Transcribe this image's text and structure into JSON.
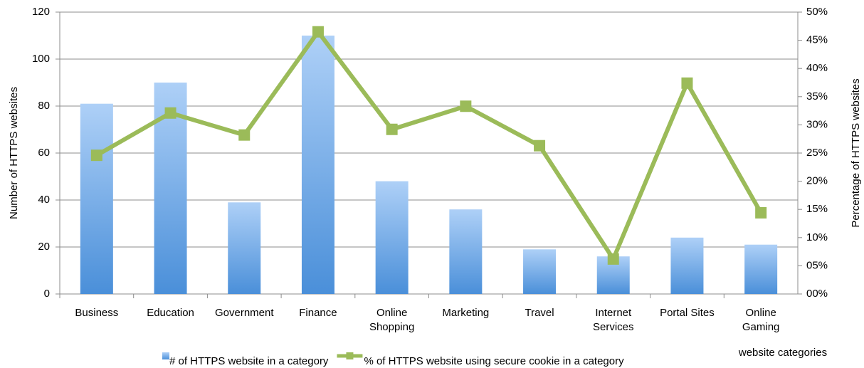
{
  "chart_data": {
    "type": "bar",
    "x_label": "website categories",
    "y_label": "Number of HTTPS websites",
    "y2_label": "Percentage of HTTPS websites",
    "categories": [
      "Business",
      "Education",
      "Government",
      "Finance",
      "Online Shopping",
      "Marketing",
      "Travel",
      "Internet Services",
      "Portal Sites",
      "Online Gaming"
    ],
    "series": [
      {
        "name": "# of HTTPS website in a category",
        "type": "bar",
        "color": "#4a8fd9",
        "values": [
          81,
          90,
          39,
          110,
          48,
          36,
          19,
          16,
          24,
          21
        ]
      },
      {
        "name": "% of HTTPS website using secure cookie in a category",
        "type": "line",
        "axis": "y2",
        "color": "#9bbb59",
        "values": [
          24.6,
          32.1,
          28.2,
          46.5,
          29.2,
          33.3,
          26.3,
          6.2,
          37.4,
          14.4
        ]
      }
    ],
    "ylim": [
      0,
      120
    ],
    "yticks": [
      0,
      20,
      40,
      60,
      80,
      100,
      120
    ],
    "y2lim": [
      0,
      50
    ],
    "y2ticks": [
      {
        "value": 0,
        "label": "00%"
      },
      {
        "value": 5,
        "label": "05%"
      },
      {
        "value": 10,
        "label": "10%"
      },
      {
        "value": 15,
        "label": "15%"
      },
      {
        "value": 20,
        "label": "20%"
      },
      {
        "value": 25,
        "label": "25%"
      },
      {
        "value": 30,
        "label": "30%"
      },
      {
        "value": 35,
        "label": "35%"
      },
      {
        "value": 40,
        "label": "40%"
      },
      {
        "value": 45,
        "label": "45%"
      },
      {
        "value": 50,
        "label": "50%"
      }
    ],
    "grid": true,
    "legend": "bottom"
  }
}
